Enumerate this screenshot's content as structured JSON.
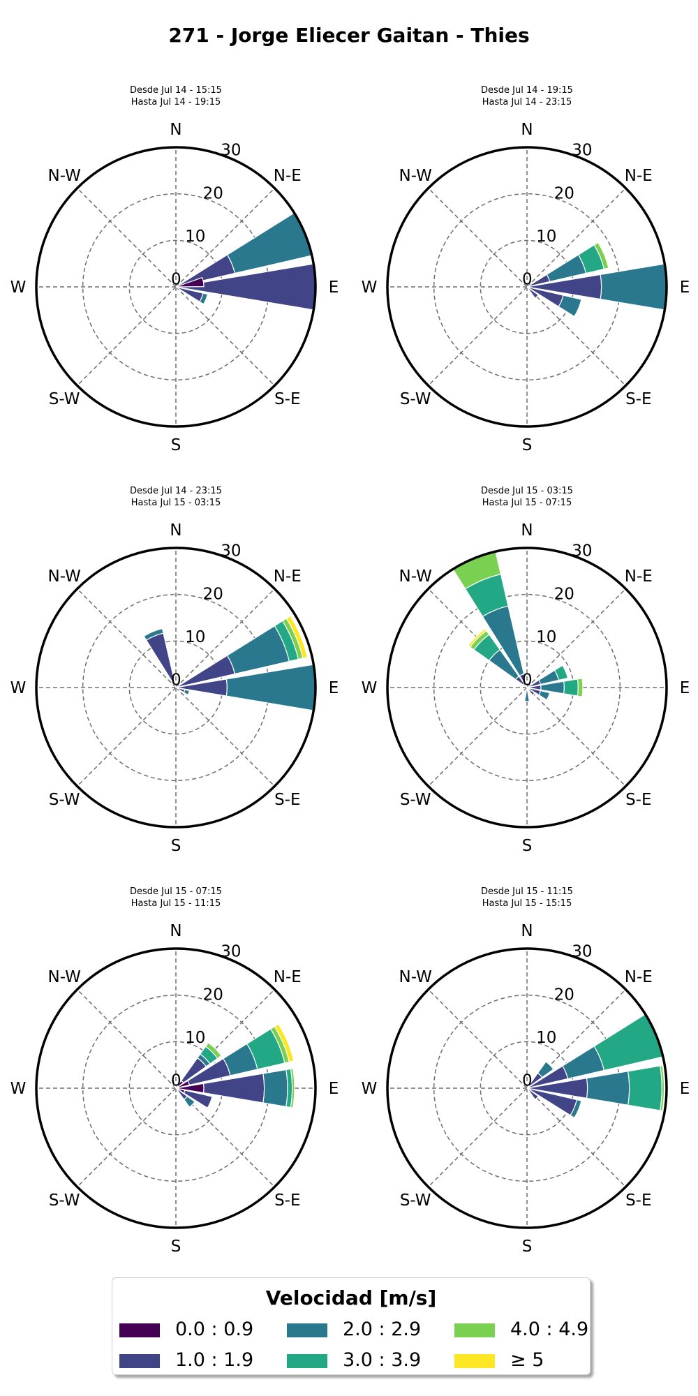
{
  "title": "271 - Jorge Eliecer Gaitan - Thies",
  "colors": [
    "#440154",
    "#414487",
    "#2a788e",
    "#22a884",
    "#7ad151",
    "#fde725"
  ],
  "legend": {
    "title": "Velocidad [m/s]",
    "items": [
      "0.0 : 0.9",
      "1.0 : 1.9",
      "2.0 : 2.9",
      "3.0 : 3.9",
      "4.0 : 4.9",
      "≥  5"
    ]
  },
  "chart_data": [
    {
      "type": "windrose",
      "subtitle": [
        "Desde Jul 14 - 15:15",
        "Hasta Jul 14 - 19:15"
      ],
      "rlim": [
        0,
        30
      ],
      "rticks": [
        0,
        10,
        20,
        30
      ],
      "directions": [
        "N",
        "N-E",
        "E",
        "S-E",
        "S",
        "S-W",
        "W",
        "N-W"
      ],
      "bins": [
        "0.0 : 0.9",
        "1.0 : 1.9",
        "2.0 : 2.9",
        "3.0 : 3.9",
        "4.0 : 4.9",
        "≥ 5"
      ],
      "sectors": [
        {
          "direction_deg": 67.5,
          "stack": [
            0,
            13,
            30,
            0,
            0,
            0
          ]
        },
        {
          "direction_deg": 90,
          "stack": [
            0,
            30,
            0,
            0,
            0,
            0
          ]
        },
        {
          "direction_deg": 112.5,
          "stack": [
            0,
            6,
            7,
            0,
            0,
            0
          ]
        },
        {
          "direction_deg": 80,
          "stack": [
            6,
            0,
            0,
            0,
            0,
            0
          ]
        }
      ]
    },
    {
      "type": "windrose",
      "subtitle": [
        "Desde Jul 14 - 19:15",
        "Hasta Jul 14 - 23:15"
      ],
      "rlim": [
        0,
        30
      ],
      "rticks": [
        0,
        10,
        20,
        30
      ],
      "directions": [
        "N",
        "N-E",
        "E",
        "S-E",
        "S",
        "S-W",
        "W",
        "N-W"
      ],
      "bins": [
        "0.0 : 0.9",
        "1.0 : 1.9",
        "2.0 : 2.9",
        "3.0 : 3.9",
        "4.0 : 4.9",
        "≥ 5"
      ],
      "sectors": [
        {
          "direction_deg": 67.5,
          "stack": [
            0,
            5,
            13,
            17,
            18,
            0
          ]
        },
        {
          "direction_deg": 90,
          "stack": [
            0,
            16,
            30,
            0,
            0,
            0
          ]
        },
        {
          "direction_deg": 112.5,
          "stack": [
            0,
            8,
            12,
            0,
            0,
            0
          ]
        },
        {
          "direction_deg": 135,
          "stack": [
            0,
            3,
            0,
            0,
            0,
            0
          ]
        }
      ]
    },
    {
      "type": "windrose",
      "subtitle": [
        "Desde Jul 14 - 23:15",
        "Hasta Jul 15 - 03:15"
      ],
      "rlim": [
        0,
        30
      ],
      "rticks": [
        0,
        10,
        20,
        30
      ],
      "directions": [
        "N",
        "N-E",
        "E",
        "S-E",
        "S",
        "S-W",
        "W",
        "N-W"
      ],
      "bins": [
        "0.0 : 0.9",
        "1.0 : 1.9",
        "2.0 : 2.9",
        "3.0 : 3.9",
        "4.0 : 4.9",
        "≥ 5"
      ],
      "sectors": [
        {
          "direction_deg": 67.5,
          "stack": [
            0,
            13,
            25,
            27,
            28,
            29
          ]
        },
        {
          "direction_deg": 90,
          "stack": [
            0,
            11,
            30,
            0,
            0,
            0
          ]
        },
        {
          "direction_deg": 337.5,
          "stack": [
            0,
            12,
            13,
            0,
            0,
            0
          ]
        },
        {
          "direction_deg": 112.5,
          "stack": [
            0,
            2,
            3,
            0,
            0,
            0
          ]
        }
      ]
    },
    {
      "type": "windrose",
      "subtitle": [
        "Desde Jul 15 - 03:15",
        "Hasta Jul 15 - 07:15"
      ],
      "rlim": [
        0,
        30
      ],
      "rticks": [
        0,
        10,
        20,
        30
      ],
      "directions": [
        "N",
        "N-E",
        "E",
        "S-E",
        "S",
        "S-W",
        "W",
        "N-W"
      ],
      "bins": [
        "0.0 : 0.9",
        "1.0 : 1.9",
        "2.0 : 2.9",
        "3.0 : 3.9",
        "4.0 : 4.9",
        "≥ 5"
      ],
      "sectors": [
        {
          "direction_deg": 337.5,
          "stack": [
            1,
            3,
            18,
            25,
            30,
            0
          ]
        },
        {
          "direction_deg": 315,
          "stack": [
            1,
            3,
            10,
            14,
            15,
            15.5
          ]
        },
        {
          "direction_deg": 67.5,
          "stack": [
            0,
            3,
            7,
            9,
            0,
            0
          ]
        },
        {
          "direction_deg": 90,
          "stack": [
            0,
            3,
            8,
            11,
            12,
            0
          ]
        },
        {
          "direction_deg": 112.5,
          "stack": [
            0,
            3,
            5,
            0,
            0,
            0
          ]
        },
        {
          "direction_deg": 135,
          "stack": [
            0,
            2,
            0,
            0,
            0,
            0
          ]
        },
        {
          "direction_deg": 180,
          "stack": [
            0,
            0,
            3,
            0,
            0,
            0
          ]
        }
      ]
    },
    {
      "type": "windrose",
      "subtitle": [
        "Desde Jul 15 - 07:15",
        "Hasta Jul 15 - 11:15"
      ],
      "rlim": [
        0,
        30
      ],
      "rticks": [
        0,
        10,
        20,
        30
      ],
      "directions": [
        "N",
        "N-E",
        "E",
        "S-E",
        "S",
        "S-W",
        "W",
        "N-W"
      ],
      "bins": [
        "0.0 : 0.9",
        "1.0 : 1.9",
        "2.0 : 2.9",
        "3.0 : 3.9",
        "4.0 : 4.9",
        "≥ 5"
      ],
      "sectors": [
        {
          "direction_deg": 45,
          "stack": [
            2,
            8,
            9,
            11,
            12,
            0
          ]
        },
        {
          "direction_deg": 67.5,
          "stack": [
            3,
            12,
            18,
            24,
            25,
            26
          ]
        },
        {
          "direction_deg": 90,
          "stack": [
            6,
            19,
            24,
            25,
            25.5,
            0
          ]
        },
        {
          "direction_deg": 112.5,
          "stack": [
            2,
            8,
            0,
            0,
            0,
            0
          ]
        },
        {
          "direction_deg": 135,
          "stack": [
            0,
            3,
            5,
            0,
            0,
            0
          ]
        },
        {
          "direction_deg": 337.5,
          "stack": [
            1,
            2,
            0,
            0,
            0,
            0
          ]
        }
      ]
    },
    {
      "type": "windrose",
      "subtitle": [
        "Desde Jul 15 - 11:15",
        "Hasta Jul 15 - 15:15"
      ],
      "rlim": [
        0,
        30
      ],
      "rticks": [
        0,
        10,
        20,
        30
      ],
      "directions": [
        "N",
        "N-E",
        "E",
        "S-E",
        "S",
        "S-W",
        "W",
        "N-W"
      ],
      "bins": [
        "0.0 : 0.9",
        "1.0 : 1.9",
        "2.0 : 2.9",
        "3.0 : 3.9",
        "4.0 : 4.9",
        "≥ 5"
      ],
      "sectors": [
        {
          "direction_deg": 67.5,
          "stack": [
            0,
            9,
            17,
            30,
            0,
            0
          ]
        },
        {
          "direction_deg": 90,
          "stack": [
            0,
            13,
            22,
            29,
            29.5,
            0
          ]
        },
        {
          "direction_deg": 112.5,
          "stack": [
            0,
            11,
            12,
            0,
            0,
            0
          ]
        },
        {
          "direction_deg": 45,
          "stack": [
            0,
            4,
            7,
            0,
            0,
            0
          ]
        },
        {
          "direction_deg": 135,
          "stack": [
            0,
            3,
            0,
            0,
            0,
            0
          ]
        }
      ]
    }
  ]
}
